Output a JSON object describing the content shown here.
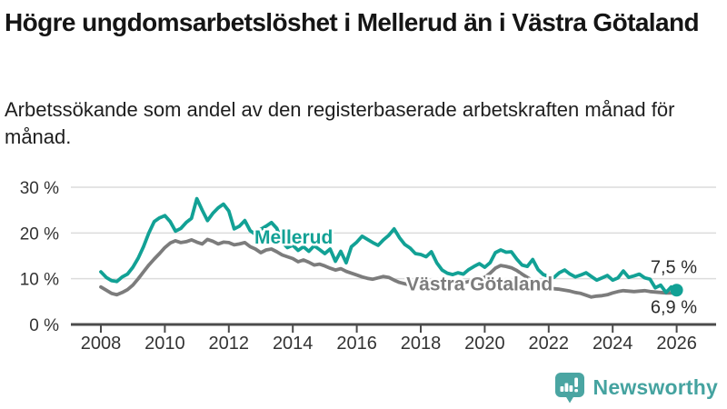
{
  "title": "Högre ungdomsarbetslöshet i Mellerud än i Västra Götaland",
  "subtitle": "Arbetssökande som andel av den registerbaserade arbetskraften månad för månad.",
  "chart_data": {
    "type": "line",
    "xlabel": "",
    "ylabel": "",
    "ylim": [
      0,
      30
    ],
    "grid": true,
    "grid_color": "#dcdcdc",
    "axis_color": "#4b4b4b",
    "tick_label_color": "#333333",
    "x_start": 2008,
    "x_step_years": 0.1666667,
    "y_ticks": [
      {
        "value": 30,
        "label": "30 %"
      },
      {
        "value": 20,
        "label": "20 %"
      },
      {
        "value": 10,
        "label": "10 %"
      },
      {
        "value": 0,
        "label": "0 %"
      }
    ],
    "x_ticks": [
      {
        "value": 2008,
        "label": "2008"
      },
      {
        "value": 2010,
        "label": "2010"
      },
      {
        "value": 2012,
        "label": "2012"
      },
      {
        "value": 2014,
        "label": "2014"
      },
      {
        "value": 2016,
        "label": "2016"
      },
      {
        "value": 2018,
        "label": "2018"
      },
      {
        "value": 2020,
        "label": "2020"
      },
      {
        "value": 2022,
        "label": "2022"
      },
      {
        "value": 2024,
        "label": "2024"
      },
      {
        "value": 2026,
        "label": "2026"
      }
    ],
    "series": [
      {
        "name": "Mellerud",
        "color": "#12A195",
        "end_label": "7,5 %",
        "end_value": 7.5,
        "end_dot": true,
        "label_at": [
          2012.8,
          17.7
        ],
        "values": [
          11.5,
          10.3,
          9.6,
          9.4,
          10.4,
          11.0,
          12.5,
          14.5,
          17.0,
          20.0,
          22.5,
          23.3,
          23.8,
          22.5,
          20.4,
          21.0,
          22.3,
          23.2,
          27.5,
          25.0,
          22.7,
          24.3,
          25.5,
          26.3,
          24.8,
          20.9,
          21.5,
          22.7,
          20.5,
          19.7,
          20.8,
          21.5,
          22.3,
          21.0,
          18.0,
          16.8,
          17.3,
          16.2,
          17.0,
          16.0,
          17.2,
          16.4,
          15.5,
          16.5,
          13.8,
          16.0,
          13.5,
          17.0,
          18.0,
          19.3,
          18.6,
          17.9,
          17.3,
          18.5,
          19.5,
          20.9,
          19.0,
          17.5,
          16.7,
          15.5,
          15.3,
          14.8,
          15.9,
          13.5,
          11.9,
          11.2,
          10.9,
          11.3,
          11.0,
          12.0,
          12.7,
          13.3,
          12.5,
          13.5,
          15.7,
          16.3,
          15.8,
          15.9,
          14.3,
          13.0,
          12.7,
          14.2,
          12.0,
          10.9,
          10.5,
          10.3,
          11.3,
          11.9,
          11.0,
          10.4,
          10.8,
          11.3,
          10.5,
          9.7,
          10.2,
          10.7,
          9.7,
          10.2,
          11.7,
          10.3,
          10.6,
          11.0,
          10.2,
          9.9,
          8.0,
          8.6,
          7.0,
          8.2,
          7.5
        ]
      },
      {
        "name": "Västra Götaland",
        "color": "#7C7C7C",
        "end_label": "6,9 %",
        "end_value": 6.9,
        "end_dot": false,
        "label_at": [
          2017.55,
          7.5
        ],
        "values": [
          8.2,
          7.5,
          6.8,
          6.5,
          7.0,
          7.6,
          8.6,
          10.0,
          11.5,
          13.0,
          14.3,
          15.5,
          16.8,
          17.8,
          18.3,
          17.9,
          18.1,
          18.5,
          18.0,
          17.6,
          18.6,
          18.2,
          17.6,
          18.0,
          17.9,
          17.4,
          17.6,
          17.9,
          17.0,
          16.5,
          15.7,
          16.3,
          16.5,
          15.9,
          15.2,
          14.8,
          14.4,
          13.7,
          14.1,
          13.6,
          13.0,
          13.2,
          12.8,
          12.3,
          11.9,
          12.2,
          11.6,
          11.2,
          10.8,
          10.4,
          10.1,
          9.9,
          10.2,
          10.5,
          10.3,
          9.7,
          9.2,
          8.9,
          8.7,
          8.6,
          8.4,
          8.2,
          8.0,
          7.9,
          8.3,
          8.6,
          9.0,
          9.3,
          9.1,
          9.4,
          9.7,
          10.0,
          10.3,
          11.2,
          12.3,
          12.9,
          12.7,
          12.4,
          11.8,
          11.0,
          10.3,
          9.6,
          8.9,
          8.4,
          8.0,
          7.8,
          7.7,
          7.5,
          7.3,
          7.0,
          6.8,
          6.4,
          6.0,
          6.2,
          6.3,
          6.5,
          6.9,
          7.2,
          7.4,
          7.3,
          7.2,
          7.3,
          7.4,
          7.2,
          7.1,
          7.0,
          6.9,
          6.9,
          6.9
        ]
      }
    ]
  },
  "branding": {
    "logo_text": "Newsworthy",
    "logo_icon": "bar-chart-speech-bubble-icon",
    "color": "#45A3A0"
  }
}
